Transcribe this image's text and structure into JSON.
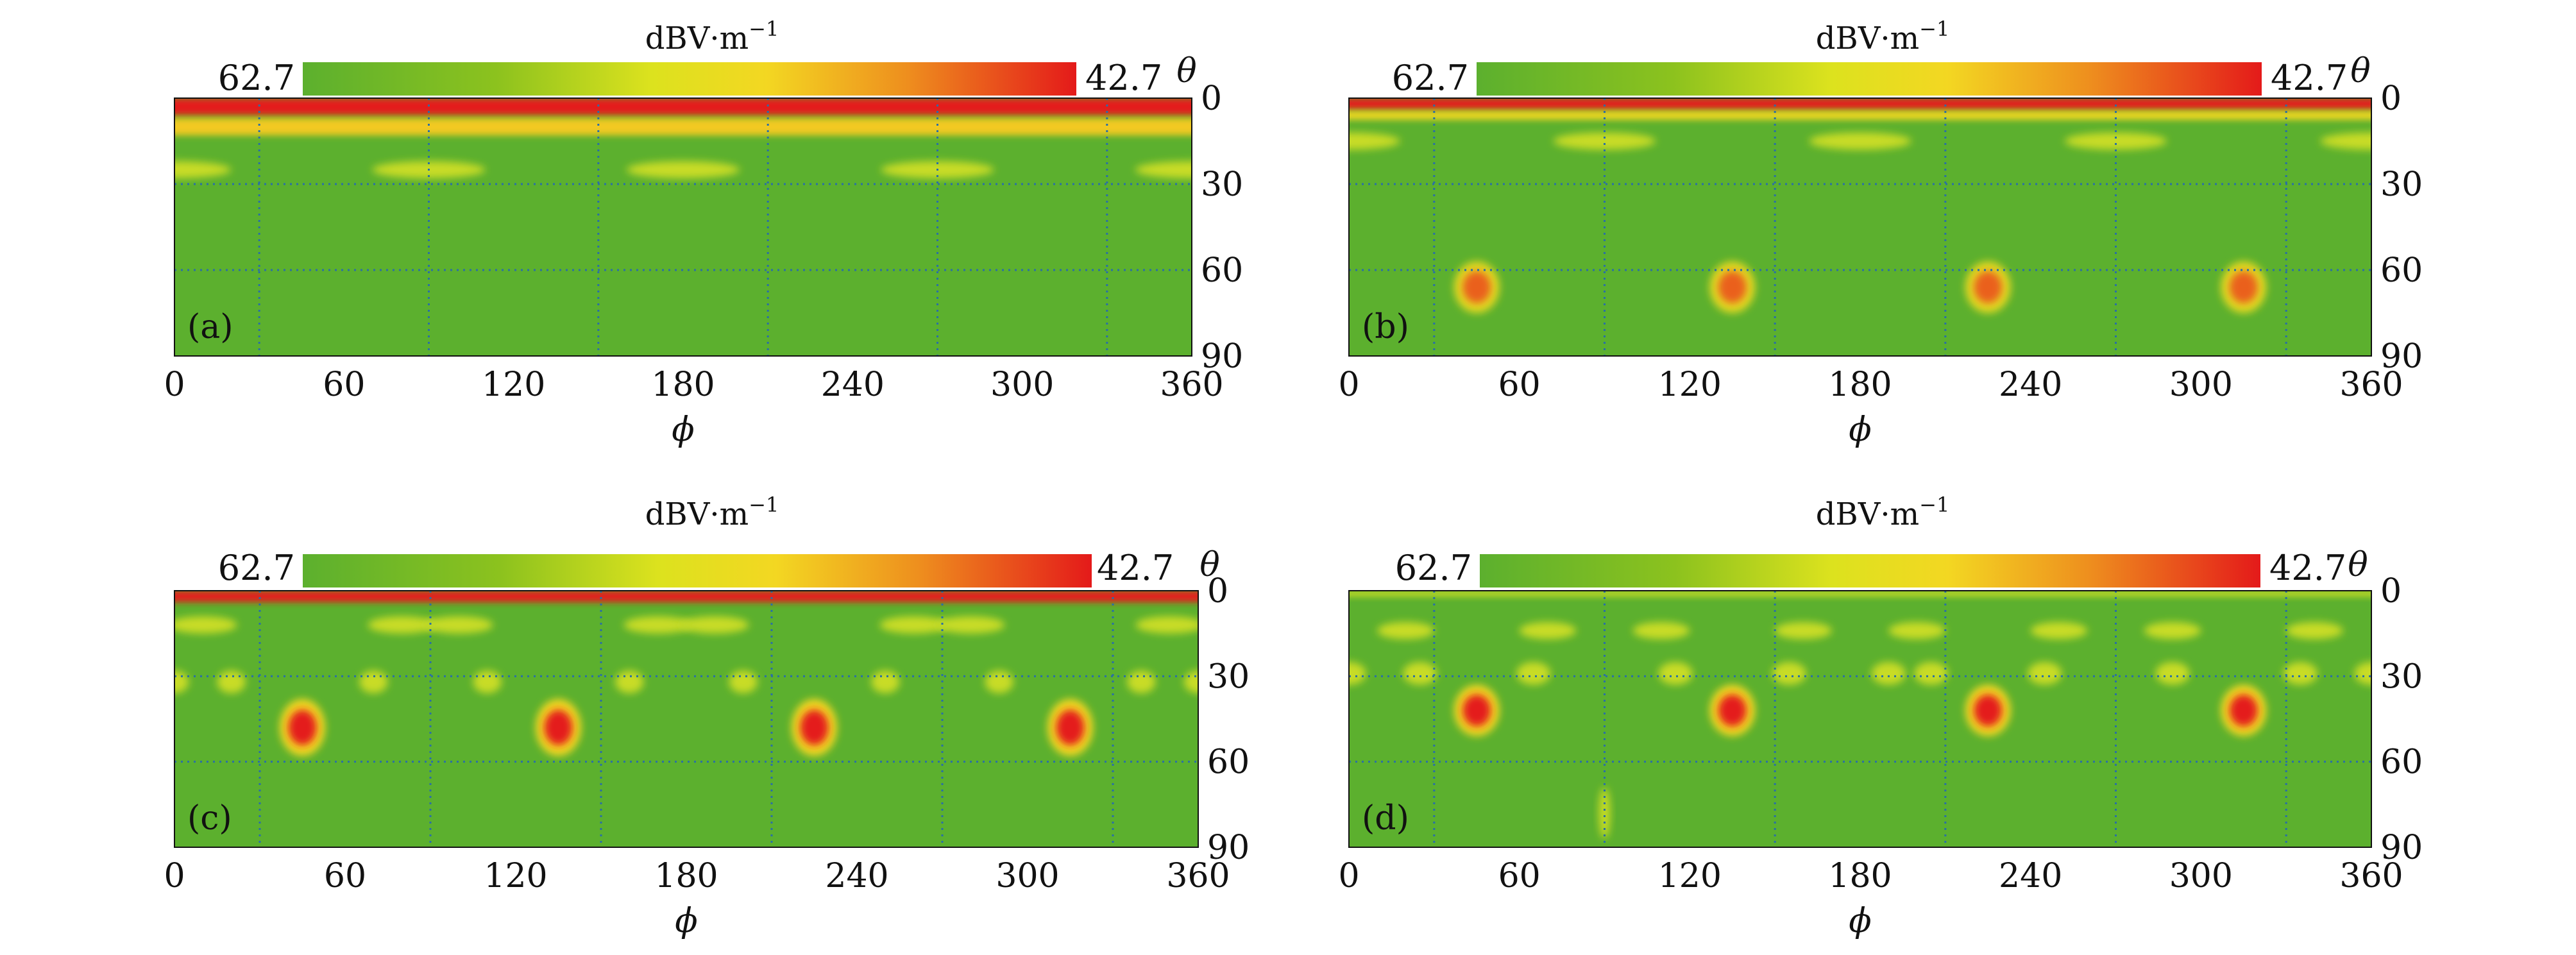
{
  "chart_data": [
    {
      "type": "heatmap",
      "panel_label": "(a)",
      "colorbar": {
        "title": "dBV·m",
        "title_exp": "−1",
        "left_value": "62.7",
        "right_value": "42.7"
      },
      "x": {
        "label": "ϕ",
        "range": [
          0,
          360
        ],
        "ticks": [
          0,
          60,
          120,
          180,
          240,
          300,
          360
        ],
        "grid": [
          30,
          90,
          150,
          210,
          270,
          330
        ]
      },
      "y": {
        "label": "θ",
        "range": [
          0,
          90
        ],
        "ticks": [
          0,
          30,
          60,
          90
        ],
        "grid": [
          30,
          60
        ]
      },
      "description_features": [
        {
          "kind": "band",
          "theta_center": 3,
          "theta_width": 6,
          "level": 1.0
        },
        {
          "kind": "band",
          "theta_center": 10,
          "theta_width": 6,
          "level": 0.55
        },
        {
          "kind": "blobs",
          "theta": 25,
          "phi": [
            0,
            90,
            180,
            270,
            360
          ],
          "rx_deg": 20,
          "ry_deg": 3,
          "level": 0.45
        }
      ]
    },
    {
      "type": "heatmap",
      "panel_label": "(b)",
      "colorbar": {
        "title": "dBV·m",
        "title_exp": "−1",
        "left_value": "62.7",
        "right_value": "42.7"
      },
      "x": {
        "label": "ϕ",
        "range": [
          0,
          360
        ],
        "ticks": [
          0,
          60,
          120,
          180,
          240,
          300,
          360
        ],
        "grid": [
          30,
          90,
          150,
          210,
          270,
          330
        ]
      },
      "y": {
        "label": "θ",
        "range": [
          0,
          90
        ],
        "ticks": [
          0,
          30,
          60,
          90
        ],
        "grid": [
          30,
          60
        ]
      },
      "description_features": [
        {
          "kind": "band",
          "theta_center": 2,
          "theta_width": 4,
          "level": 1.0
        },
        {
          "kind": "band",
          "theta_center": 6,
          "theta_width": 3,
          "level": 0.5
        },
        {
          "kind": "blobs",
          "theta": 15,
          "phi": [
            0,
            90,
            180,
            270,
            360
          ],
          "rx_deg": 18,
          "ry_deg": 3,
          "level": 0.45
        },
        {
          "kind": "blobs",
          "theta": 66,
          "phi": [
            45,
            135,
            225,
            315
          ],
          "rx_deg": 8,
          "ry_deg": 9,
          "level": 0.85
        }
      ]
    },
    {
      "type": "heatmap",
      "panel_label": "(c)",
      "colorbar": {
        "title": "dBV·m",
        "title_exp": "−1",
        "left_value": "62.7",
        "right_value": "42.7"
      },
      "x": {
        "label": "ϕ",
        "range": [
          0,
          360
        ],
        "ticks": [
          0,
          60,
          120,
          180,
          240,
          300,
          360
        ],
        "grid": [
          30,
          90,
          150,
          210,
          270,
          330
        ]
      },
      "y": {
        "label": "θ",
        "range": [
          0,
          90
        ],
        "ticks": [
          0,
          30,
          60,
          90
        ],
        "grid": [
          30,
          60
        ]
      },
      "description_features": [
        {
          "kind": "band",
          "theta_center": 2,
          "theta_width": 4,
          "level": 1.0
        },
        {
          "kind": "blobs",
          "theta": 12,
          "phi": [
            10,
            80,
            100,
            170,
            190,
            260,
            280,
            350
          ],
          "rx_deg": 12,
          "ry_deg": 3,
          "level": 0.45
        },
        {
          "kind": "blobs",
          "theta": 32,
          "phi": [
            0,
            20,
            70,
            110,
            160,
            200,
            250,
            290,
            340,
            360
          ],
          "rx_deg": 5,
          "ry_deg": 4,
          "level": 0.5
        },
        {
          "kind": "blobs",
          "theta": 48,
          "phi": [
            45,
            135,
            225,
            315
          ],
          "rx_deg": 8,
          "ry_deg": 10,
          "level": 1.0
        }
      ]
    },
    {
      "type": "heatmap",
      "panel_label": "(d)",
      "colorbar": {
        "title": "dBV·m",
        "title_exp": "−1",
        "left_value": "62.7",
        "right_value": "42.7"
      },
      "x": {
        "label": "ϕ",
        "range": [
          0,
          360
        ],
        "ticks": [
          0,
          60,
          120,
          180,
          240,
          300,
          360
        ],
        "grid": [
          30,
          90,
          150,
          210,
          270,
          330
        ]
      },
      "y": {
        "label": "θ",
        "range": [
          0,
          90
        ],
        "ticks": [
          0,
          30,
          60,
          90
        ],
        "grid": [
          30,
          60
        ]
      },
      "description_features": [
        {
          "kind": "band",
          "theta_center": 1,
          "theta_width": 2,
          "level": 0.3
        },
        {
          "kind": "blobs",
          "theta": 14,
          "phi": [
            20,
            70,
            110,
            160,
            200,
            250,
            290,
            340
          ],
          "rx_deg": 10,
          "ry_deg": 3,
          "level": 0.4
        },
        {
          "kind": "blobs",
          "theta": 29,
          "phi": [
            0,
            25,
            65,
            115,
            155,
            190,
            205,
            245,
            290,
            335,
            360
          ],
          "rx_deg": 6,
          "ry_deg": 4,
          "level": 0.55
        },
        {
          "kind": "blobs",
          "theta": 42,
          "phi": [
            45,
            135,
            225,
            315
          ],
          "rx_deg": 8,
          "ry_deg": 9,
          "level": 1.0
        },
        {
          "kind": "blobs",
          "theta": 78,
          "phi": [
            90
          ],
          "rx_deg": 2,
          "ry_deg": 9,
          "level": 0.4
        }
      ]
    }
  ]
}
